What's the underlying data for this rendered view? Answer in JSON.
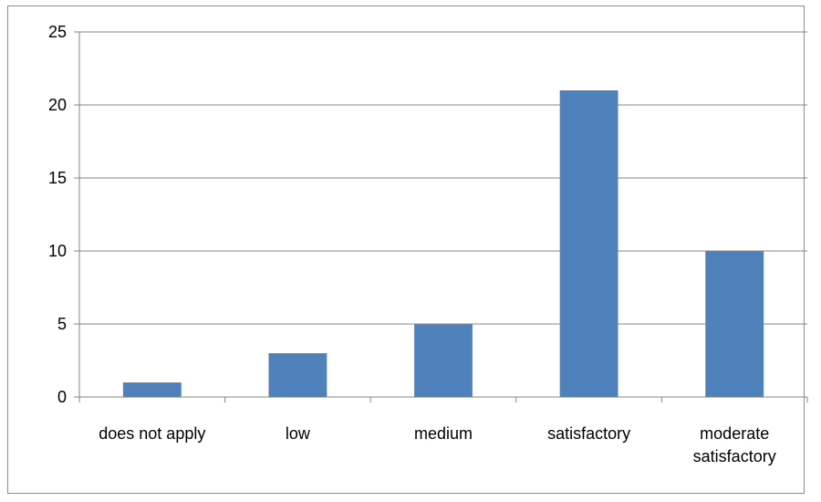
{
  "chart_data": {
    "type": "bar",
    "categories": [
      "does not apply",
      "low",
      "medium",
      "satisfactory",
      "moderate satisfactory"
    ],
    "category_label_lines": [
      [
        "does not apply"
      ],
      [
        "low"
      ],
      [
        "medium"
      ],
      [
        "satisfactory"
      ],
      [
        "moderate",
        "satisfactory"
      ]
    ],
    "values": [
      1,
      3,
      5,
      21,
      10
    ],
    "ylim": [
      0,
      25
    ],
    "yticks": [
      "0",
      "5",
      "10",
      "15",
      "20",
      "25"
    ],
    "grid": true,
    "legend": "none",
    "colors": {
      "bar": "#4F81BD",
      "grid": "#868686",
      "axis": "#868686"
    }
  }
}
